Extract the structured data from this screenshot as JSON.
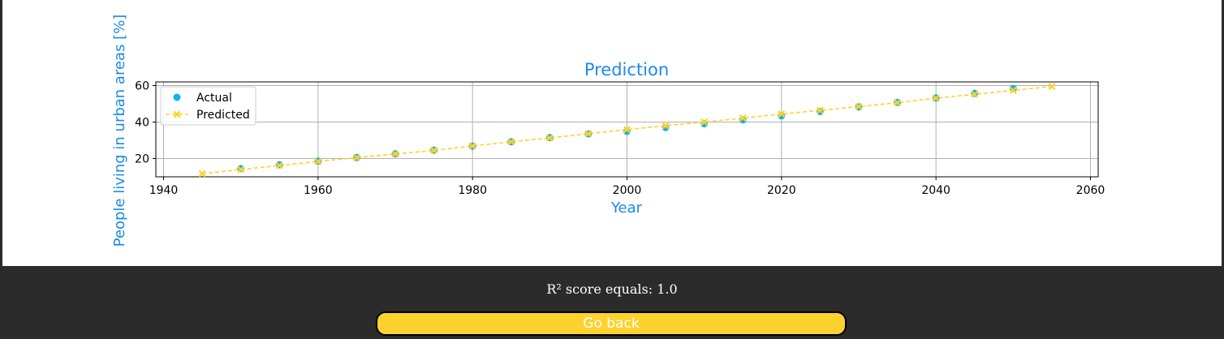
{
  "chart_data": {
    "type": "scatter",
    "title": "Prediction",
    "xlabel": "Year",
    "ylabel": "People living in urban areas [%]",
    "xlim": [
      1939,
      2061
    ],
    "ylim": [
      10,
      62
    ],
    "xticks": [
      1940,
      1960,
      1980,
      2000,
      2020,
      2040,
      2060
    ],
    "yticks": [
      20,
      40,
      60
    ],
    "grid": true,
    "legend_position": "top-left",
    "label_color": "#1a8be8",
    "series": [
      {
        "name": "Actual",
        "kind": "scatter",
        "marker": "circle",
        "color": "#0fb3f0",
        "x": [
          1950,
          1955,
          1960,
          1965,
          1970,
          1975,
          1980,
          1985,
          1990,
          1995,
          2000,
          2005,
          2010,
          2015,
          2020,
          2025,
          2030,
          2035,
          2040,
          2045,
          2050
        ],
        "y": [
          14.5,
          16.6,
          18.6,
          20.6,
          22.6,
          24.6,
          26.8,
          29.2,
          31.5,
          33.5,
          34.9,
          37.0,
          39.1,
          41.2,
          43.4,
          45.8,
          48.3,
          50.8,
          53.2,
          55.7,
          58.4
        ]
      },
      {
        "name": "Predicted",
        "kind": "line",
        "marker": "x",
        "line_style": "dashed",
        "color": "#fdd22e",
        "x": [
          1945,
          1950,
          1955,
          1960,
          1965,
          1970,
          1975,
          1980,
          1985,
          1990,
          1995,
          2000,
          2005,
          2010,
          2015,
          2020,
          2025,
          2030,
          2035,
          2040,
          2045,
          2050,
          2055
        ],
        "y": [
          11.7,
          14.0,
          16.2,
          18.4,
          20.5,
          22.5,
          24.5,
          26.9,
          29.2,
          31.3,
          33.6,
          35.9,
          38.0,
          40.0,
          42.2,
          44.4,
          46.4,
          48.5,
          50.6,
          53.1,
          55.2,
          57.4,
          59.5
        ]
      }
    ]
  },
  "r2_text": "R² score equals: 1.0",
  "go_back_button": {
    "label": "Go back",
    "bg_color": "#fdd22e"
  }
}
